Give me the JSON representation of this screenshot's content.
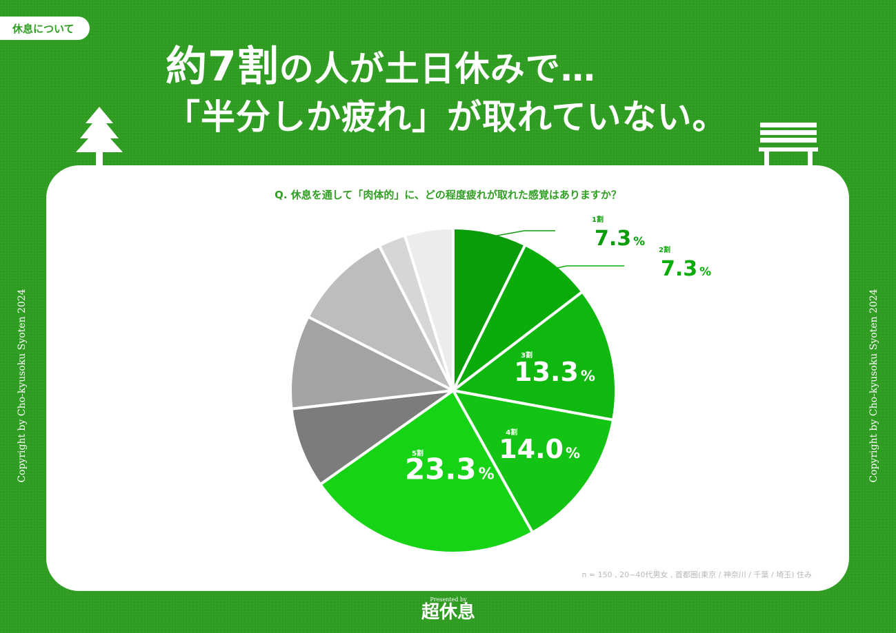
{
  "tag": "休息について",
  "headline": {
    "line1_big": "約7割",
    "line1_rest": "の人が土日休みで…",
    "line2": "「半分しか疲れ」が取れていない。"
  },
  "question": "Q. 休息を通して「肉体的」に、どの程度疲れが取れた感覚はありますか？",
  "note": "n = 150 , 20~40代男女 , 首都圏(東京 / 神奈川 / 千葉 / 埼玉) 住み",
  "copyright": "Copyright by Cho-kyusoku Syoten 2024",
  "logo": {
    "pre": "Presented by",
    "name": "超休息"
  },
  "icons": {
    "left": "tree-icon",
    "right": "bench-icon"
  },
  "chart_data": {
    "type": "pie",
    "start": "12 o'clock, clockwise",
    "slices": [
      {
        "label": "1割",
        "value": 7.3,
        "display": "7.3",
        "unit": "%",
        "color": "#0a9c0a"
      },
      {
        "label": "2割",
        "value": 7.3,
        "display": "7.3",
        "unit": "%",
        "color": "#0aac0a"
      },
      {
        "label": "3割",
        "value": 13.3,
        "display": "13.3",
        "unit": "%",
        "color": "#0fb80f"
      },
      {
        "label": "4割",
        "value": 14.0,
        "display": "14.0",
        "unit": "%",
        "color": "#14c414"
      },
      {
        "label": "5割",
        "value": 23.3,
        "display": "23.3",
        "unit": "%",
        "color": "#16d316"
      },
      {
        "label": "",
        "value": 8.0,
        "color": "#7c7c7c"
      },
      {
        "label": "",
        "value": 9.3,
        "color": "#a3a3a3"
      },
      {
        "label": "",
        "value": 10.0,
        "color": "#bdbdbd"
      },
      {
        "label": "",
        "value": 2.7,
        "color": "#d6d6d6"
      },
      {
        "label": "",
        "value": 4.8,
        "color": "#ececec"
      }
    ]
  }
}
